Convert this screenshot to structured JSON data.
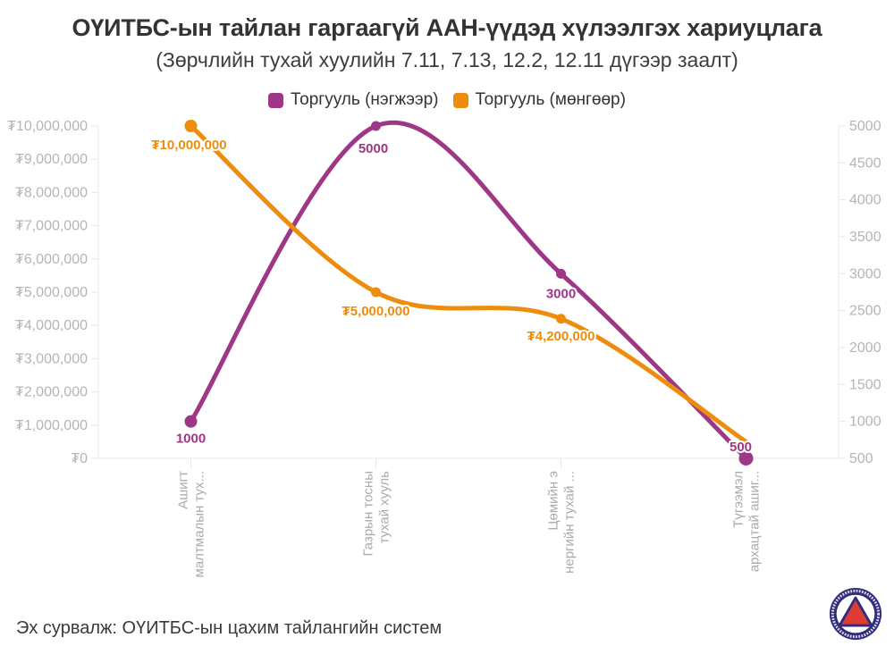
{
  "title": "ОҮИТБС-ын тайлан гаргаагүй ААН-үүдэд хүлээлгэх хариуцлага",
  "subtitle": "(Зөрчлийн тухай хуулийн 7.11, 7.13, 12.2, 12.11 дүгээр заалт)",
  "colors": {
    "purple": "#9d3786",
    "orange": "#ee8d0d",
    "axis_line": "#e8e8e8",
    "tick_label": "#b5b5b5",
    "category_label": "#ababab"
  },
  "legend": [
    {
      "label": "Торгууль (нэгжээр)",
      "color": "#9d3786"
    },
    {
      "label": "Торгууль (мөнгөөр)",
      "color": "#ee8d0d"
    }
  ],
  "chart_data": {
    "type": "line",
    "categories": [
      [
        "Ашигт",
        "малтмалын тух..."
      ],
      [
        "Газрын тосны",
        "тухай хууль"
      ],
      [
        "Цөмийн э",
        "нергийн тухай ..."
      ],
      [
        "Түгээмэл",
        "архацтай ашиг..."
      ]
    ],
    "series": [
      {
        "name": "Торгууль (нэгжээр)",
        "axis": "right",
        "color": "#9d3786",
        "values": [
          1000,
          5000,
          3000,
          500
        ],
        "labels": [
          "1000",
          "5000",
          "3000",
          "500"
        ]
      },
      {
        "name": "Торгууль (мөнгөөр)",
        "axis": "left",
        "color": "#ee8d0d",
        "values": [
          10000000,
          5000000,
          4200000,
          500000
        ],
        "labels": [
          "₮10,000,000",
          "₮5,000,000",
          "₮4,200,000",
          ""
        ]
      }
    ],
    "left_axis": {
      "min": 0,
      "max": 10000000,
      "step": 1000000,
      "tick_labels": [
        "₮10,000,000",
        "₮9,000,000",
        "₮8,000,000",
        "₮7,000,000",
        "₮6,000,000",
        "₮5,000,000",
        "₮4,000,000",
        "₮3,000,000",
        "₮2,000,000",
        "₮1,000,000",
        "₮0"
      ]
    },
    "right_axis": {
      "min": 500,
      "max": 5000,
      "step": 500,
      "tick_labels": [
        "5000",
        "4500",
        "4000",
        "3500",
        "3000",
        "2500",
        "2000",
        "1500",
        "1000",
        "500"
      ]
    },
    "grid": false,
    "legend_position": "top"
  },
  "footer": {
    "source": "Эх сурвалж: ОҮИТБС-ын цахим тайлангийн систем"
  },
  "logo": {
    "name": "eiti-mongolia-logo"
  }
}
